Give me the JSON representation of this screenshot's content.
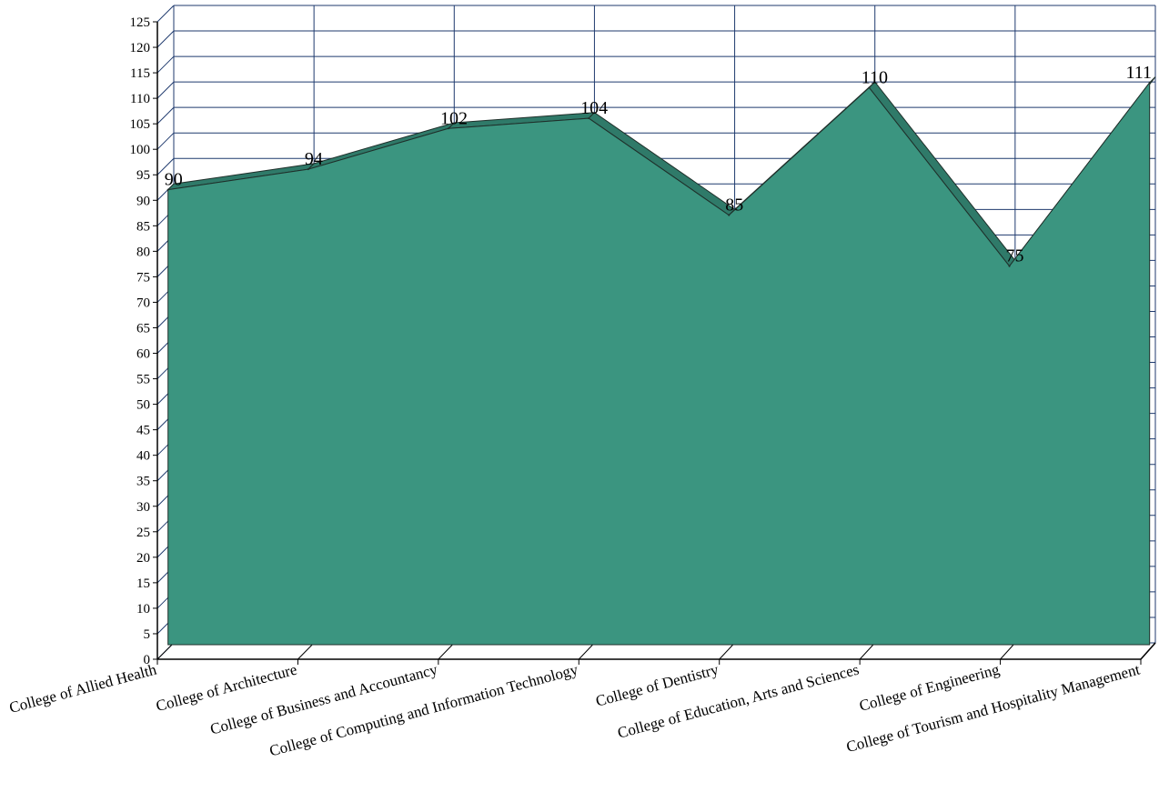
{
  "chart_data": {
    "type": "area",
    "title": "",
    "xlabel": "",
    "ylabel": "",
    "ylim": [
      0,
      125
    ],
    "y_tick_step": 5,
    "grid": true,
    "legend": "none",
    "categories": [
      "College of Allied Health",
      "College of Architecture",
      "College of Business and Accountancy",
      "College of Computing and Information Technology",
      "College of Dentistry",
      "College of Education, Arts and Sciences",
      "College of Engineering",
      "College of Tourism and Hospitality Management"
    ],
    "values": [
      90,
      94,
      102,
      104,
      85,
      110,
      75,
      111
    ],
    "colors": {
      "area": "#3b9580",
      "area_top": "#2f7a69",
      "outline": "#1f2f2a",
      "grid": "#1f3a6e",
      "axis": "#000000"
    }
  }
}
